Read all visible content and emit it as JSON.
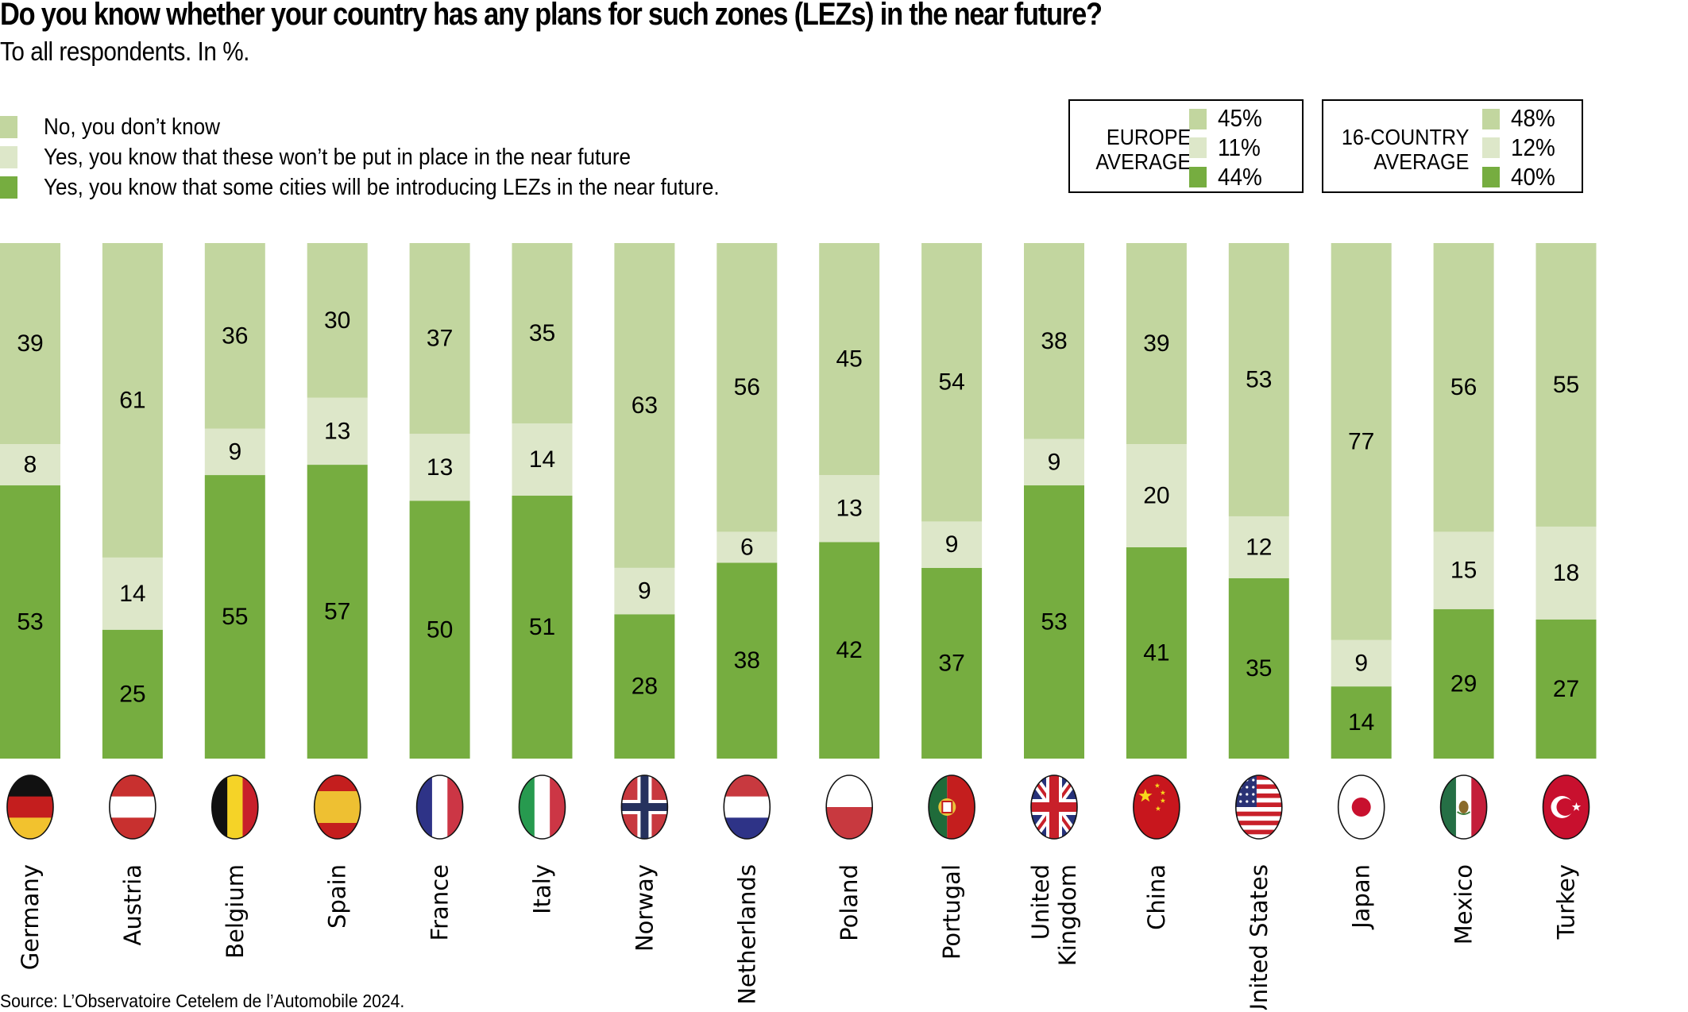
{
  "header": {
    "title": "Do you know whether your country has any plans for such zones (LEZs) in the near future?",
    "subtitle": "To all respondents. In %."
  },
  "colors": {
    "dont_know": "#c2d69f",
    "wont": "#dde7c9",
    "will": "#76ad40"
  },
  "legend": [
    {
      "key": "dont_know",
      "label": "No, you don’t know"
    },
    {
      "key": "wont",
      "label": "Yes, you know that these won’t be put in place in the near future"
    },
    {
      "key": "will",
      "label": "Yes, you know that some cities will be introducing LEZs in the near future."
    }
  ],
  "averages": [
    {
      "label_line1": "EUROPE",
      "label_line2": "AVERAGE",
      "dont_know": "45%",
      "wont": "11%",
      "will": "44%"
    },
    {
      "label_line1": "16-COUNTRY",
      "label_line2": "AVERAGE",
      "dont_know": "48%",
      "wont": "12%",
      "will": "40%"
    }
  ],
  "chart_data": {
    "type": "bar",
    "stacked": true,
    "orientation": "vertical",
    "title": "Do you know whether your country has any plans for such zones (LEZs) in the near future?",
    "subtitle": "To all respondents. In %.",
    "xlabel": "",
    "ylabel": "",
    "ylim": [
      0,
      100
    ],
    "grid": false,
    "legend_position": "top-left",
    "categories": [
      "Germany",
      "Austria",
      "Belgium",
      "Spain",
      "France",
      "Italy",
      "Norway",
      "Netherlands",
      "Poland",
      "Portugal",
      "United Kingdom",
      "China",
      "United States",
      "Japan",
      "Mexico",
      "Turkey"
    ],
    "category_label_lines": [
      [
        "Germany"
      ],
      [
        "Austria"
      ],
      [
        "Belgium"
      ],
      [
        "Spain"
      ],
      [
        "France"
      ],
      [
        "Italy"
      ],
      [
        "Norway"
      ],
      [
        "Netherlands"
      ],
      [
        "Poland"
      ],
      [
        "Portugal"
      ],
      [
        "United",
        "Kingdom"
      ],
      [
        "China"
      ],
      [
        "United States"
      ],
      [
        "Japan"
      ],
      [
        "Mexico"
      ],
      [
        "Turkey"
      ]
    ],
    "flags": [
      "germany-flag",
      "austria-flag",
      "belgium-flag",
      "spain-flag",
      "france-flag",
      "italy-flag",
      "norway-flag",
      "netherlands-flag",
      "poland-flag",
      "portugal-flag",
      "uk-flag",
      "china-flag",
      "usa-flag",
      "japan-flag",
      "mexico-flag",
      "turkey-flag"
    ],
    "series": [
      {
        "key": "will",
        "name": "Yes, you know that some cities will be introducing LEZs in the near future.",
        "values": [
          53,
          25,
          55,
          57,
          50,
          51,
          28,
          38,
          42,
          37,
          53,
          41,
          35,
          14,
          29,
          27
        ]
      },
      {
        "key": "wont",
        "name": "Yes, you know that these won’t be put in place in the near future",
        "values": [
          8,
          14,
          9,
          13,
          13,
          14,
          9,
          6,
          13,
          9,
          9,
          20,
          12,
          9,
          15,
          18
        ]
      },
      {
        "key": "dont_know",
        "name": "No, you don’t know",
        "values": [
          39,
          61,
          36,
          30,
          37,
          35,
          63,
          56,
          45,
          54,
          38,
          39,
          53,
          77,
          56,
          55
        ]
      }
    ]
  },
  "footer": {
    "source": "Source: L’Observatoire Cetelem de l’Automobile 2024."
  }
}
